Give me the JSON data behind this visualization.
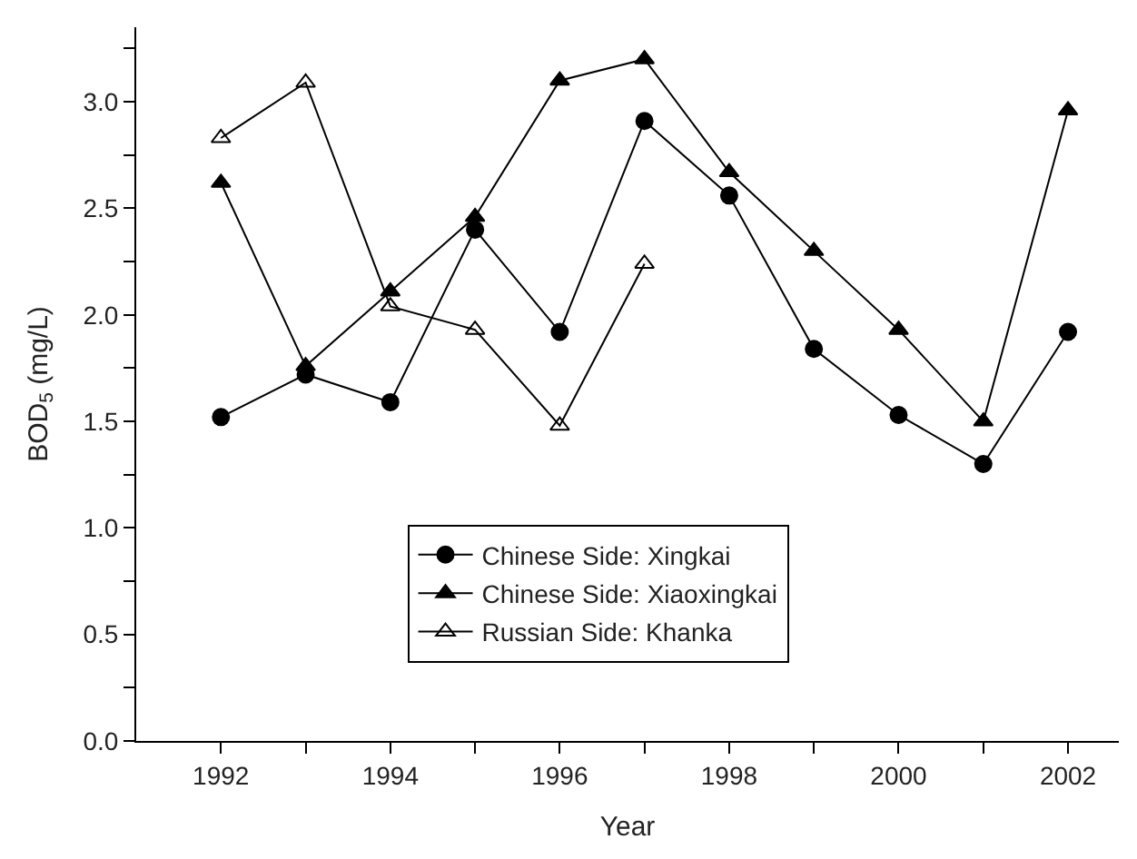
{
  "chart_data": {
    "type": "line",
    "xlabel": "Year",
    "ylabel": "BOD$_{5}$ (mg/L)",
    "x": [
      1992,
      1993,
      1994,
      1995,
      1996,
      1997,
      1998,
      1999,
      2000,
      2001,
      2002
    ],
    "series": [
      {
        "name": "Chinese Side: Xingkai",
        "color": "#000000",
        "marker": "circle",
        "values": [
          1.52,
          1.72,
          1.59,
          2.4,
          1.92,
          2.91,
          2.56,
          1.84,
          1.53,
          1.3,
          1.92
        ]
      },
      {
        "name": "Chinese Side: Xiaoxingkai",
        "color": "#000000",
        "marker": "triangle",
        "values": [
          2.62,
          1.76,
          2.11,
          2.46,
          3.1,
          3.2,
          2.67,
          2.3,
          1.93,
          1.5,
          2.96
        ]
      },
      {
        "name": "Russian Side: Khanka",
        "color": "#000000",
        "marker": "triangle-open",
        "values": [
          2.83,
          3.09,
          2.04,
          1.93,
          1.48,
          2.24,
          null,
          null,
          null,
          null,
          null
        ]
      }
    ],
    "xlim": [
      1991,
      2002.6
    ],
    "xticks": [
      1992,
      {
        "value": 1993,
        "label": null
      },
      1994,
      {
        "value": 1995,
        "label": null
      },
      1996,
      {
        "value": 1997,
        "label": null
      },
      1998,
      {
        "value": 1999,
        "label": null
      },
      2000,
      {
        "value": 2001,
        "label": null
      },
      2002
    ],
    "ylim": [
      0,
      3.35
    ],
    "yticks": [
      {
        "value": 0,
        "label": "0.0"
      },
      {
        "value": 0.25,
        "label": null
      },
      {
        "value": 0.5,
        "label": "0.5"
      },
      {
        "value": 0.75,
        "label": null
      },
      {
        "value": 1,
        "label": "1.0"
      },
      {
        "value": 1.25,
        "label": null
      },
      {
        "value": 1.5,
        "label": "1.5"
      },
      {
        "value": 1.75,
        "label": null
      },
      {
        "value": 2,
        "label": "2.0"
      },
      {
        "value": 2.25,
        "label": null
      },
      {
        "value": 2.5,
        "label": "2.5"
      },
      {
        "value": 2.75,
        "label": null
      },
      {
        "value": 3,
        "label": "3.0"
      },
      {
        "value": 3.25,
        "label": null
      }
    ],
    "legend": "bottom",
    "line_style": "solid"
  }
}
